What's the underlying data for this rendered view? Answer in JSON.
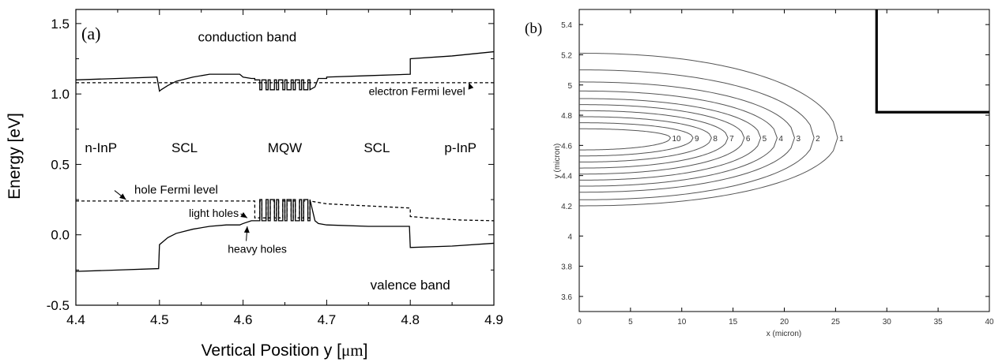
{
  "chart_data": [
    {
      "panel": "(a)",
      "type": "line",
      "xlabel": "Vertical Position y [",
      "xlabel_unit": "μm",
      "xlabel_end": "]",
      "ylabel": "Energy [eV]",
      "xlim": [
        4.4,
        4.9
      ],
      "ylim": [
        -0.5,
        1.6
      ],
      "x_ticks": [
        4.4,
        4.5,
        4.6,
        4.7,
        4.8,
        4.9
      ],
      "x_tick_labels": [
        "4.4",
        "4.5",
        "4.6",
        "4.7",
        "4.8",
        "4.9"
      ],
      "y_ticks": [
        -0.5,
        0.0,
        0.5,
        1.0,
        1.5
      ],
      "y_tick_labels": [
        "-0.5",
        "0.0",
        "0.5",
        "1.0",
        "1.5"
      ],
      "grid": false,
      "regions": [
        {
          "label": "n-InP",
          "x": 4.43,
          "y": 0.62
        },
        {
          "label": "SCL",
          "x": 4.53,
          "y": 0.62
        },
        {
          "label": "MQW",
          "x": 4.65,
          "y": 0.62
        },
        {
          "label": "SCL",
          "x": 4.76,
          "y": 0.62
        },
        {
          "label": "p-InP",
          "x": 4.86,
          "y": 0.62
        }
      ],
      "annotations": [
        {
          "text": "conduction band",
          "x": 4.605,
          "y": 1.4
        },
        {
          "text": "valence band",
          "x": 4.8,
          "y": -0.36
        },
        {
          "text": "electron Fermi level",
          "x": 4.808,
          "y": 1.02,
          "arrow_to": [
            4.87,
            1.08
          ]
        },
        {
          "text": "hole Fermi level",
          "x": 4.52,
          "y": 0.32,
          "arrow_to": [
            4.46,
            0.25
          ]
        },
        {
          "text": "light holes",
          "x": 4.565,
          "y": 0.155,
          "arrow_to": [
            4.605,
            0.12
          ]
        },
        {
          "text": "heavy holes",
          "x": 4.617,
          "y": -0.1,
          "arrow_to": [
            4.605,
            0.06
          ]
        }
      ],
      "series": [
        {
          "style": "solid",
          "x": [
            4.4,
            4.45,
            4.497,
            4.5,
            4.502,
            4.51,
            4.52,
            4.54,
            4.56,
            4.58,
            4.596,
            4.6,
            4.61,
            4.614,
            4.614,
            4.62,
            4.62,
            4.6225,
            4.6225,
            4.6275,
            4.6275,
            4.63,
            4.63,
            4.6325,
            4.6325,
            4.6375,
            4.6375,
            4.64,
            4.64,
            4.6425,
            4.6425,
            4.6475,
            4.6475,
            4.65,
            4.65,
            4.6525,
            4.6525,
            4.6575,
            4.6575,
            4.66,
            4.66,
            4.6625,
            4.6625,
            4.6675,
            4.6675,
            4.67,
            4.67,
            4.6725,
            4.6725,
            4.6775,
            4.6775,
            4.68,
            4.68,
            4.686,
            4.69,
            4.7,
            4.7,
            4.75,
            4.8,
            4.8,
            4.85,
            4.9
          ],
          "y": [
            1.1,
            1.11,
            1.12,
            1.02,
            1.03,
            1.06,
            1.09,
            1.12,
            1.14,
            1.14,
            1.14,
            1.12,
            1.11,
            1.11,
            1.1,
            1.1,
            1.03,
            1.03,
            1.1,
            1.1,
            1.03,
            1.03,
            1.1,
            1.1,
            1.03,
            1.03,
            1.1,
            1.1,
            1.03,
            1.03,
            1.1,
            1.1,
            1.03,
            1.03,
            1.1,
            1.1,
            1.03,
            1.03,
            1.1,
            1.1,
            1.03,
            1.03,
            1.1,
            1.1,
            1.03,
            1.03,
            1.1,
            1.1,
            1.03,
            1.03,
            1.1,
            1.1,
            1.03,
            1.05,
            1.11,
            1.11,
            1.12,
            1.13,
            1.14,
            1.25,
            1.27,
            1.3
          ]
        },
        {
          "style": "dashed",
          "x": [
            4.4,
            4.9
          ],
          "y": [
            1.08,
            1.08
          ]
        },
        {
          "style": "dashed",
          "x": [
            4.4,
            4.5,
            4.6,
            4.614,
            4.614,
            4.62,
            4.62,
            4.6225,
            4.6225,
            4.6275,
            4.6275,
            4.63,
            4.63,
            4.6325,
            4.6325,
            4.6375,
            4.6375,
            4.64,
            4.64,
            4.6425,
            4.6425,
            4.6475,
            4.6475,
            4.65,
            4.65,
            4.6525,
            4.6525,
            4.6575,
            4.6575,
            4.66,
            4.66,
            4.6625,
            4.6625,
            4.6675,
            4.6675,
            4.67,
            4.67,
            4.6725,
            4.6725,
            4.6775,
            4.6775,
            4.68,
            4.68,
            4.7,
            4.8,
            4.8,
            4.82,
            4.86,
            4.9
          ],
          "y": [
            0.24,
            0.24,
            0.24,
            0.24,
            0.12,
            0.12,
            0.24,
            0.24,
            0.12,
            0.12,
            0.24,
            0.24,
            0.12,
            0.12,
            0.24,
            0.24,
            0.12,
            0.12,
            0.24,
            0.24,
            0.12,
            0.12,
            0.24,
            0.24,
            0.12,
            0.12,
            0.24,
            0.24,
            0.12,
            0.12,
            0.24,
            0.24,
            0.12,
            0.12,
            0.24,
            0.24,
            0.12,
            0.12,
            0.24,
            0.24,
            0.12,
            0.12,
            0.24,
            0.22,
            0.19,
            0.13,
            0.12,
            0.105,
            0.1
          ]
        },
        {
          "style": "solid",
          "x": [
            4.4,
            4.45,
            4.499,
            4.5,
            4.51,
            4.52,
            4.54,
            4.56,
            4.58,
            4.596,
            4.6,
            4.61,
            4.614,
            4.614,
            4.62,
            4.62,
            4.6225,
            4.6225,
            4.6275,
            4.6275,
            4.63,
            4.63,
            4.6325,
            4.6325,
            4.6375,
            4.6375,
            4.64,
            4.64,
            4.6425,
            4.6425,
            4.6475,
            4.6475,
            4.65,
            4.65,
            4.6525,
            4.6525,
            4.6575,
            4.6575,
            4.66,
            4.66,
            4.6625,
            4.6625,
            4.6675,
            4.6675,
            4.67,
            4.67,
            4.6725,
            4.6725,
            4.6775,
            4.6775,
            4.68,
            4.68,
            4.686,
            4.69,
            4.7,
            4.7,
            4.75,
            4.799,
            4.8,
            4.85,
            4.9
          ],
          "y": [
            -0.26,
            -0.25,
            -0.24,
            -0.07,
            -0.02,
            0.01,
            0.04,
            0.06,
            0.07,
            0.07,
            0.08,
            0.1,
            0.1,
            0.1,
            0.1,
            0.25,
            0.25,
            0.1,
            0.1,
            0.25,
            0.25,
            0.1,
            0.1,
            0.25,
            0.25,
            0.1,
            0.1,
            0.25,
            0.25,
            0.1,
            0.1,
            0.25,
            0.25,
            0.1,
            0.1,
            0.25,
            0.25,
            0.1,
            0.1,
            0.25,
            0.25,
            0.1,
            0.1,
            0.25,
            0.25,
            0.1,
            0.1,
            0.25,
            0.25,
            0.1,
            0.1,
            0.25,
            0.1,
            0.08,
            0.07,
            0.07,
            0.06,
            0.06,
            -0.09,
            -0.08,
            -0.06
          ]
        }
      ]
    },
    {
      "panel": "(b)",
      "type": "line",
      "xlabel": "x (micron)",
      "ylabel": "y (micron)",
      "xlim": [
        0,
        40
      ],
      "ylim": [
        3.5,
        5.5
      ],
      "x_ticks": [
        0,
        5,
        10,
        15,
        20,
        25,
        30,
        35,
        40
      ],
      "x_tick_labels": [
        "0",
        "5",
        "10",
        "15",
        "20",
        "25",
        "30",
        "35",
        "40"
      ],
      "y_ticks": [
        3.6,
        3.8,
        4.0,
        4.2,
        4.4,
        4.6,
        4.8,
        5.0,
        5.2,
        5.4
      ],
      "y_tick_labels": [
        "3.6",
        "3.8",
        "4",
        "4.2",
        "4.4",
        "4.6",
        "4.8",
        "5",
        "5.2",
        "5.4"
      ],
      "grid": false,
      "contour_center_y": 4.65,
      "contours": [
        {
          "label": "1",
          "x_extent": 25.2,
          "y_top": 5.21,
          "y_bottom": 4.2
        },
        {
          "label": "2",
          "x_extent": 22.9,
          "y_top": 5.1,
          "y_bottom": 4.24
        },
        {
          "label": "3",
          "x_extent": 21.0,
          "y_top": 5.02,
          "y_bottom": 4.29
        },
        {
          "label": "4",
          "x_extent": 19.3,
          "y_top": 4.96,
          "y_bottom": 4.33
        },
        {
          "label": "5",
          "x_extent": 17.7,
          "y_top": 4.91,
          "y_bottom": 4.37
        },
        {
          "label": "6",
          "x_extent": 16.1,
          "y_top": 4.87,
          "y_bottom": 4.41
        },
        {
          "label": "7",
          "x_extent": 14.5,
          "y_top": 4.83,
          "y_bottom": 4.45
        },
        {
          "label": "8",
          "x_extent": 12.9,
          "y_top": 4.79,
          "y_bottom": 4.49
        },
        {
          "label": "9",
          "x_extent": 11.1,
          "y_top": 4.75,
          "y_bottom": 4.53
        },
        {
          "label": "10",
          "x_extent": 8.9,
          "y_top": 4.71,
          "y_bottom": 4.57
        }
      ],
      "ridge_boundary": {
        "x": [
          29,
          29,
          40
        ],
        "y": [
          5.5,
          4.82,
          4.82
        ]
      }
    }
  ]
}
